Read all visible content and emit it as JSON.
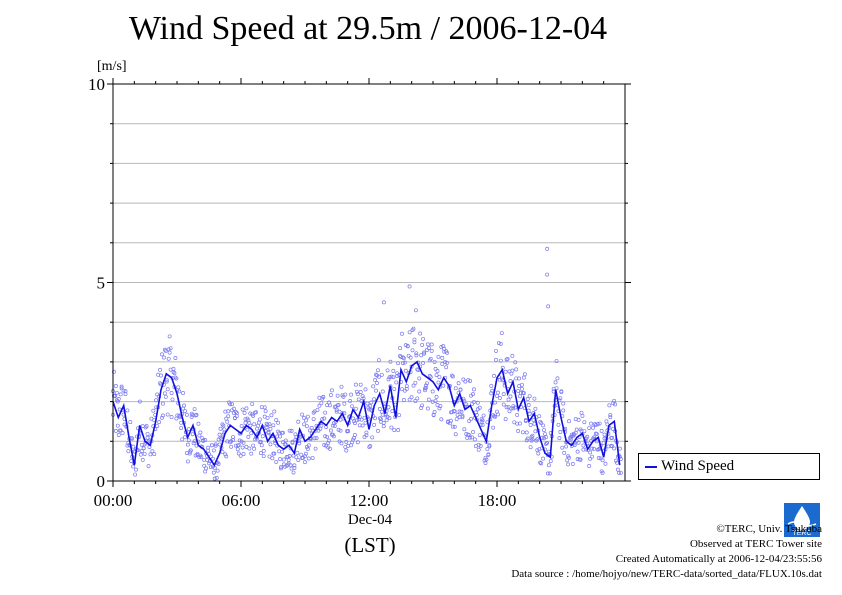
{
  "chart_data": {
    "type": "scatter",
    "title": "Wind Speed at 29.5m / 2006-12-04",
    "ylabel": "[m/s]",
    "xlabel_date": "Dec-04",
    "xlabel_zone": "(LST)",
    "ylim": [
      0,
      10
    ],
    "xlim": [
      0,
      24
    ],
    "y_ticks": [
      "0",
      "5",
      "10"
    ],
    "x_ticks": [
      "00:00",
      "06:00",
      "12:00",
      "18:00"
    ],
    "grid": true,
    "legend_position": "right",
    "series": [
      {
        "name": "Wind Speed",
        "color": "#1010e0",
        "x_hours": [
          0.0,
          0.25,
          0.5,
          0.75,
          1.0,
          1.25,
          1.5,
          1.75,
          2.0,
          2.25,
          2.5,
          2.75,
          3.0,
          3.25,
          3.5,
          3.75,
          4.0,
          4.25,
          4.5,
          4.75,
          5.0,
          5.25,
          5.5,
          5.75,
          6.0,
          6.25,
          6.5,
          6.75,
          7.0,
          7.25,
          7.5,
          7.75,
          8.0,
          8.25,
          8.5,
          8.75,
          9.0,
          9.25,
          9.5,
          9.75,
          10.0,
          10.25,
          10.5,
          10.75,
          11.0,
          11.25,
          11.5,
          11.75,
          12.0,
          12.25,
          12.5,
          12.75,
          13.0,
          13.25,
          13.5,
          13.75,
          14.0,
          14.25,
          14.5,
          14.75,
          15.0,
          15.25,
          15.5,
          15.75,
          16.0,
          16.25,
          16.5,
          16.75,
          17.0,
          17.25,
          17.5,
          17.75,
          18.0,
          18.25,
          18.5,
          18.75,
          19.0,
          19.25,
          19.5,
          19.75,
          20.0,
          20.25,
          20.5,
          20.75,
          21.0,
          21.25,
          21.5,
          21.75,
          22.0,
          22.25,
          22.5,
          22.75,
          23.0,
          23.25,
          23.5,
          23.75
        ],
        "values": [
          2.0,
          1.6,
          1.9,
          1.1,
          0.4,
          1.4,
          1.0,
          0.9,
          1.5,
          2.3,
          2.7,
          2.6,
          2.2,
          1.6,
          1.1,
          1.4,
          0.9,
          0.8,
          0.6,
          0.4,
          0.7,
          1.2,
          1.4,
          1.3,
          1.2,
          1.4,
          1.3,
          1.1,
          1.4,
          1.0,
          1.2,
          0.9,
          0.8,
          0.9,
          0.7,
          1.3,
          1.0,
          1.1,
          1.3,
          1.5,
          1.4,
          1.6,
          1.5,
          1.7,
          1.4,
          1.8,
          1.6,
          2.0,
          1.3,
          1.9,
          2.2,
          1.7,
          2.4,
          1.6,
          2.8,
          2.5,
          2.9,
          3.0,
          2.7,
          2.6,
          2.5,
          2.3,
          2.6,
          2.4,
          1.9,
          2.2,
          1.8,
          1.9,
          1.6,
          1.3,
          1.0,
          1.9,
          2.6,
          2.8,
          2.2,
          2.5,
          1.8,
          2.1,
          1.5,
          1.7,
          1.1,
          0.7,
          0.6,
          2.3,
          1.6,
          1.0,
          0.9,
          1.1,
          1.2,
          0.8,
          1.0,
          1.1,
          0.6,
          1.4,
          1.5,
          0.4
        ]
      }
    ],
    "outliers": [
      {
        "x": 12.7,
        "y": 4.5
      },
      {
        "x": 13.9,
        "y": 4.9
      },
      {
        "x": 14.2,
        "y": 4.3
      },
      {
        "x": 20.35,
        "y": 5.85
      },
      {
        "x": 20.35,
        "y": 5.2
      },
      {
        "x": 20.4,
        "y": 4.4
      }
    ]
  },
  "credits": {
    "copyright": "©TERC, Univ. Tsukuba",
    "observed": "Observed at TERC Tower site",
    "created": "Created Automatically at 2006-12-04/23:55:56",
    "source": "Data source : /home/hojyo/new/TERC-data/sorted_data/FLUX.10s.dat"
  },
  "logo_text": "TERC"
}
